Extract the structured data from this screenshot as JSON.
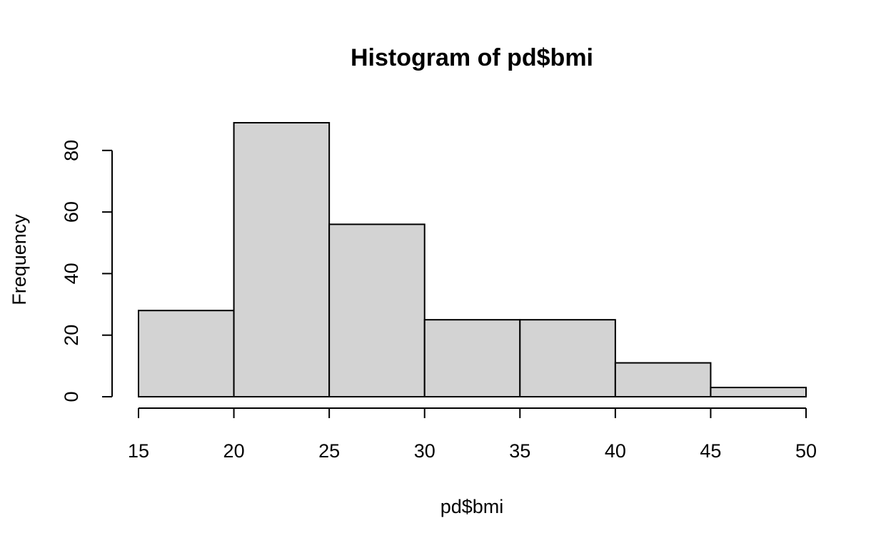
{
  "chart_data": {
    "type": "bar",
    "title": "Histogram of pd$bmi",
    "xlabel": "pd$bmi",
    "ylabel": "Frequency",
    "bins": [
      {
        "from": 15,
        "to": 20,
        "count": 28
      },
      {
        "from": 20,
        "to": 25,
        "count": 89
      },
      {
        "from": 25,
        "to": 30,
        "count": 56
      },
      {
        "from": 30,
        "to": 35,
        "count": 25
      },
      {
        "from": 35,
        "to": 40,
        "count": 25
      },
      {
        "from": 40,
        "to": 45,
        "count": 11
      },
      {
        "from": 45,
        "to": 50,
        "count": 3
      }
    ],
    "x_ticks": [
      15,
      20,
      25,
      30,
      35,
      40,
      45,
      50
    ],
    "y_ticks": [
      0,
      20,
      40,
      60,
      80
    ],
    "xlim": [
      15,
      50
    ],
    "ylim": [
      0,
      89
    ],
    "bar_color": "#d3d3d3",
    "edge_color": "#000000",
    "grid": false
  }
}
